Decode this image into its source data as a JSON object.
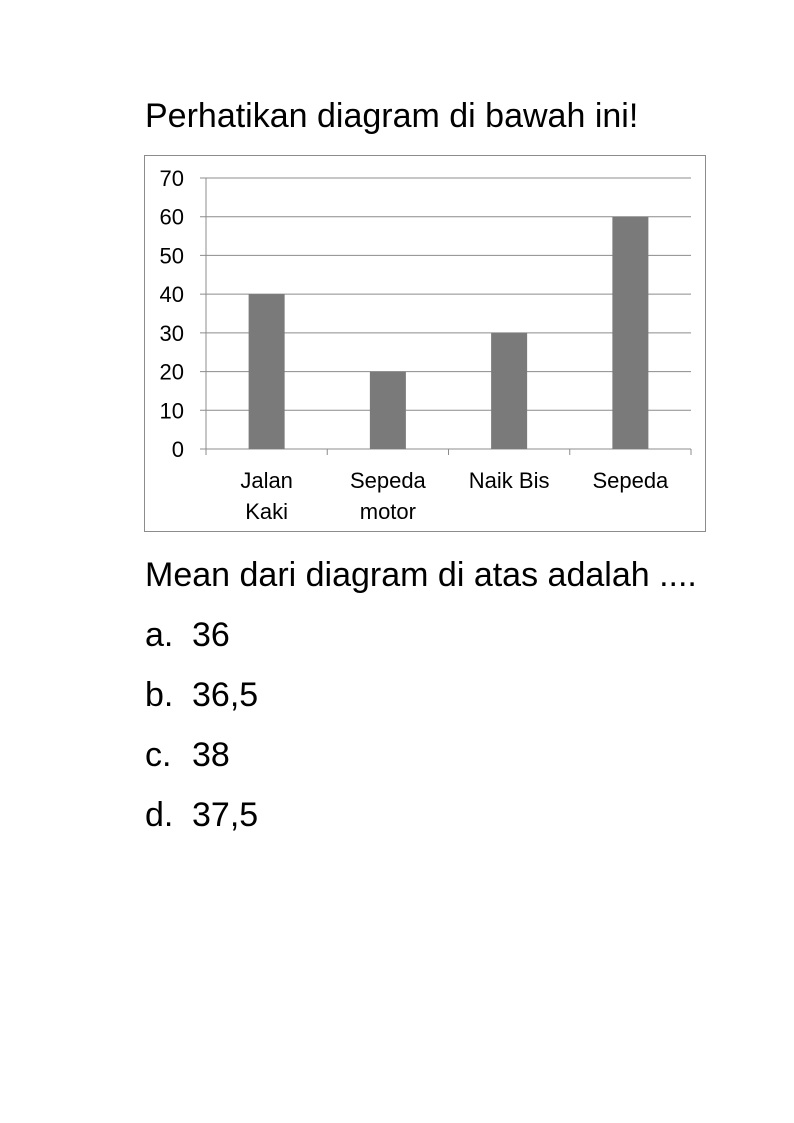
{
  "instruction": "Perhatikan diagram di bawah ini!",
  "question": "Mean dari diagram di atas adalah ....",
  "options": [
    {
      "letter": "a.",
      "text": "36"
    },
    {
      "letter": "b.",
      "text": "36,5"
    },
    {
      "letter": "c.",
      "text": "38"
    },
    {
      "letter": "d.",
      "text": "37,5"
    }
  ],
  "chart_data": {
    "type": "bar",
    "categories": [
      [
        "Jalan",
        "Kaki"
      ],
      [
        "Sepeda",
        "motor"
      ],
      [
        "Naik Bis"
      ],
      [
        "Sepeda"
      ]
    ],
    "values": [
      40,
      20,
      30,
      60
    ],
    "ylim": [
      0,
      70
    ],
    "yticks": [
      "0",
      "10",
      "20",
      "30",
      "40",
      "50",
      "60",
      "70"
    ],
    "grid": true,
    "legend": "none",
    "bar_color": "#7a7a7a",
    "grid_color": "#8c8c8c"
  }
}
